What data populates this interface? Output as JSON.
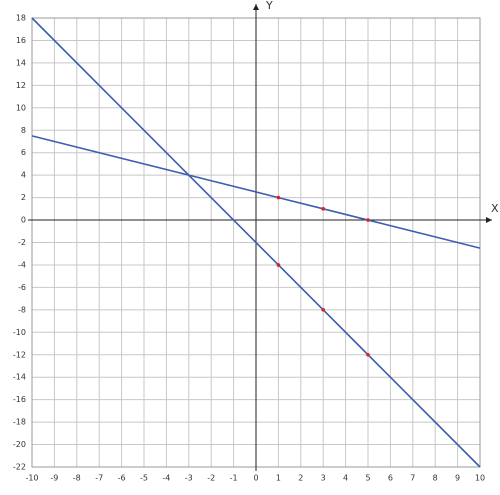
{
  "chart_data": {
    "type": "line",
    "xlabel": "X",
    "ylabel": "Y",
    "xlim": [
      -10,
      10
    ],
    "ylim": [
      -22,
      18
    ],
    "xticks": [
      -10,
      -9,
      -8,
      -7,
      -6,
      -5,
      -4,
      -3,
      -2,
      -1,
      0,
      1,
      2,
      3,
      4,
      5,
      6,
      7,
      8,
      9,
      10
    ],
    "yticks": [
      -22,
      -20,
      -18,
      -16,
      -14,
      -12,
      -10,
      -8,
      -6,
      -4,
      -2,
      0,
      2,
      4,
      6,
      8,
      10,
      12,
      14,
      16,
      18
    ],
    "grid": true,
    "series": [
      {
        "color": "#3a5fb0",
        "mode": "line",
        "x": [
          -10,
          -3,
          1,
          3,
          5,
          10
        ],
        "values": [
          18,
          4,
          -4,
          -8,
          -12,
          -22
        ]
      },
      {
        "color": "#3a5fb0",
        "mode": "line",
        "x": [
          -10,
          -3,
          1,
          3,
          5,
          10
        ],
        "values": [
          7.5,
          4,
          2,
          1,
          0,
          -2.5
        ]
      },
      {
        "color": "#e02020",
        "mode": "markers",
        "x": [
          1,
          3,
          5
        ],
        "values": [
          -4,
          -8,
          -12
        ]
      },
      {
        "color": "#e02020",
        "mode": "markers",
        "x": [
          1,
          3,
          5
        ],
        "values": [
          2,
          1,
          0
        ]
      }
    ]
  }
}
